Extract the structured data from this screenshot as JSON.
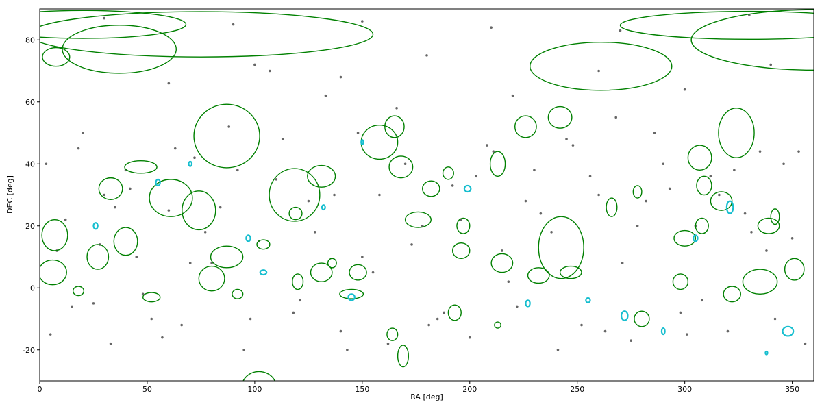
{
  "chart_data": {
    "type": "scatter",
    "xlabel": "RA [deg]",
    "ylabel": "DEC [deg]",
    "xlim": [
      0,
      360
    ],
    "ylim": [
      -30,
      90
    ],
    "xticks": [
      0,
      50,
      100,
      150,
      200,
      250,
      300,
      350
    ],
    "yticks": [
      -20,
      0,
      20,
      40,
      60,
      80
    ],
    "points": {
      "color": "#666666",
      "x": [
        5,
        12,
        18,
        25,
        30,
        33,
        40,
        45,
        52,
        60,
        66,
        72,
        80,
        88,
        95,
        102,
        110,
        118,
        125,
        133,
        140,
        148,
        155,
        162,
        170,
        178,
        185,
        192,
        200,
        208,
        215,
        222,
        230,
        238,
        245,
        252,
        260,
        268,
        275,
        282,
        290,
        298,
        305,
        312,
        320,
        328,
        335,
        342,
        350,
        356,
        8,
        20,
        35,
        48,
        63,
        77,
        92,
        107,
        121,
        137,
        150,
        166,
        181,
        196,
        211,
        226,
        241,
        256,
        271,
        286,
        301,
        316,
        331,
        346,
        3,
        15,
        28,
        42,
        57,
        70,
        84,
        98,
        113,
        128,
        143,
        158,
        173,
        188,
        203,
        218,
        233,
        248,
        263,
        278,
        293,
        308,
        323,
        338,
        353,
        60,
        100,
        140,
        180,
        220,
        260,
        300,
        340,
        30,
        90,
        150,
        210,
        270,
        330
      ],
      "values": [
        -15,
        22,
        45,
        -5,
        30,
        -18,
        38,
        10,
        -10,
        25,
        -12,
        42,
        8,
        52,
        -20,
        15,
        35,
        -8,
        28,
        62,
        -14,
        50,
        5,
        -18,
        40,
        20,
        -10,
        33,
        -16,
        46,
        12,
        -6,
        38,
        18,
        48,
        -12,
        30,
        55,
        -17,
        28,
        40,
        -8,
        20,
        36,
        -14,
        24,
        44,
        -10,
        16,
        -18,
        12,
        50,
        26,
        -2,
        45,
        18,
        38,
        70,
        -4,
        30,
        10,
        58,
        -12,
        22,
        44,
        28,
        -20,
        36,
        8,
        50,
        -15,
        30,
        18,
        40,
        40,
        -6,
        14,
        32,
        -16,
        8,
        26,
        -10,
        48,
        18,
        -20,
        30,
        14,
        -8,
        36,
        2,
        24,
        46,
        -14,
        20,
        32,
        -4,
        38,
        12,
        44,
        66,
        72,
        68,
        75,
        62,
        70,
        64,
        72,
        87,
        85,
        86,
        84,
        83,
        88
      ]
    },
    "ellipses": [
      {
        "color": "#008000",
        "x": [
          75,
          20,
          37,
          7.6,
          330,
          360,
          261,
          87,
          118.5,
          242.5,
          324,
          61,
          74,
          102,
          7,
          6,
          27,
          33,
          47,
          40,
          165,
          158,
          168,
          213,
          226,
          242,
          307,
          309,
          317,
          339,
          351,
          322,
          335,
          298,
          280,
          193,
          196,
          215,
          232,
          247,
          131,
          119,
          145,
          169,
          164,
          131,
          87,
          80,
          120,
          136,
          104,
          148,
          176,
          182,
          197,
          278,
          266,
          300,
          308,
          342,
          190,
          18,
          52,
          92,
          213
        ],
        "values": [
          81.8,
          85,
          77,
          74.5,
          84.7,
          80,
          71.5,
          49,
          30,
          13,
          50,
          29,
          25,
          -32,
          17,
          5,
          10,
          32,
          39,
          15,
          52,
          47,
          39,
          40,
          52,
          55,
          42,
          33,
          28,
          20,
          6,
          -2,
          2,
          2,
          -10,
          -8,
          12,
          8,
          4,
          5,
          36,
          24,
          -2,
          -22,
          -15,
          5,
          10,
          3,
          2,
          8,
          14,
          5,
          22,
          32,
          20,
          31,
          26,
          16,
          20,
          23,
          37,
          -1,
          -3,
          -2,
          -12
        ],
        "widths": [
          160,
          96,
          53,
          12.7,
          120,
          114,
          66,
          30.6,
          23.5,
          21,
          16.6,
          20,
          15.6,
          16,
          12,
          13,
          10,
          11,
          15,
          11,
          9,
          17,
          11,
          7,
          10,
          11,
          11,
          7,
          10,
          10,
          9,
          8,
          16,
          7,
          7,
          6,
          8,
          10,
          10,
          10,
          13,
          6,
          11,
          5,
          5,
          10,
          15,
          12,
          5,
          4,
          6,
          8,
          12,
          8,
          6,
          4,
          5,
          10,
          6,
          4,
          5,
          5,
          8,
          5,
          3
        ],
        "heights": [
          14.6,
          9,
          15.5,
          6,
          9,
          19.5,
          15.5,
          20.5,
          17,
          20,
          16,
          12,
          12.5,
          10,
          10,
          8,
          8,
          7,
          4,
          9,
          7,
          11,
          7,
          8,
          7,
          7,
          8,
          6,
          6,
          5,
          7,
          5,
          8,
          5,
          5,
          5,
          5,
          6,
          5,
          4,
          7,
          4,
          3,
          7,
          4,
          6,
          7,
          8,
          5,
          3,
          3,
          5,
          5,
          5,
          5,
          4,
          6,
          5,
          5,
          5,
          4,
          3,
          3,
          3,
          2
        ]
      },
      {
        "color": "#17becf",
        "x": [
          70,
          55,
          26,
          97,
          104,
          132,
          145,
          199,
          227,
          255,
          272,
          290,
          348,
          321,
          305,
          338,
          150
        ],
        "values": [
          40,
          34,
          20,
          16,
          5,
          26,
          -3,
          32,
          -5,
          -4,
          -9,
          -14,
          -14,
          26,
          16,
          -21,
          47
        ],
        "widths": [
          1.5,
          2,
          2,
          2,
          3,
          1.5,
          3,
          3,
          2,
          2,
          3,
          1.5,
          5,
          3,
          2,
          1,
          1
        ],
        "heights": [
          1.5,
          2,
          2,
          2,
          1.5,
          1.5,
          2,
          2,
          2,
          1.5,
          3,
          2,
          3,
          4,
          2,
          1,
          1.5
        ]
      }
    ]
  }
}
